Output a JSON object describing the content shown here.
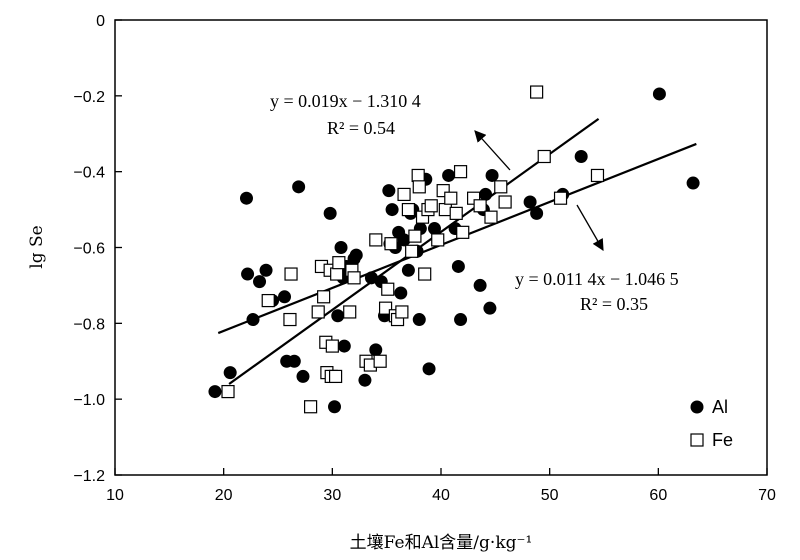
{
  "chart_data": {
    "type": "scatter",
    "xlabel": "土壤Fe和Al含量/g·kg⁻¹",
    "ylabel": "lg Se",
    "xlim": [
      10,
      70
    ],
    "ylim": [
      -1.2,
      0
    ],
    "xticks": [
      "10",
      "20",
      "30",
      "40",
      "50",
      "60",
      "70"
    ],
    "yticks": [
      "0",
      "-0.2",
      "-0.4",
      "-0.6",
      "-0.8",
      "-1.0",
      "-1.2"
    ],
    "legend_position": "bottom-right",
    "series": [
      {
        "name": "Al",
        "marker": "filled-circle",
        "color": "#000000",
        "points": [
          [
            19.2,
            -0.98
          ],
          [
            20.6,
            -0.93
          ],
          [
            22.1,
            -0.47
          ],
          [
            22.2,
            -0.67
          ],
          [
            22.7,
            -0.79
          ],
          [
            23.3,
            -0.69
          ],
          [
            23.9,
            -0.66
          ],
          [
            24.5,
            -0.74
          ],
          [
            25.6,
            -0.73
          ],
          [
            25.8,
            -0.9
          ],
          [
            26.5,
            -0.9
          ],
          [
            26.9,
            -0.44
          ],
          [
            27.3,
            -0.94
          ],
          [
            29.8,
            -0.51
          ],
          [
            30.2,
            -1.02
          ],
          [
            30.5,
            -0.78
          ],
          [
            30.8,
            -0.6
          ],
          [
            31.0,
            -0.68
          ],
          [
            31.1,
            -0.86
          ],
          [
            31.3,
            -0.65
          ],
          [
            31.7,
            -0.67
          ],
          [
            32.0,
            -0.63
          ],
          [
            32.2,
            -0.62
          ],
          [
            33.0,
            -0.95
          ],
          [
            33.6,
            -0.68
          ],
          [
            34.0,
            -0.87
          ],
          [
            34.5,
            -0.69
          ],
          [
            34.8,
            -0.78
          ],
          [
            35.2,
            -0.45
          ],
          [
            35.3,
            -0.59
          ],
          [
            35.5,
            -0.5
          ],
          [
            35.8,
            -0.6
          ],
          [
            36.1,
            -0.56
          ],
          [
            36.3,
            -0.72
          ],
          [
            36.6,
            -0.58
          ],
          [
            37.0,
            -0.66
          ],
          [
            37.2,
            -0.51
          ],
          [
            37.4,
            -0.5
          ],
          [
            37.8,
            -0.61
          ],
          [
            38.0,
            -0.79
          ],
          [
            38.1,
            -0.55
          ],
          [
            38.6,
            -0.42
          ],
          [
            38.9,
            -0.92
          ],
          [
            39.4,
            -0.55
          ],
          [
            40.7,
            -0.41
          ],
          [
            41.3,
            -0.55
          ],
          [
            41.6,
            -0.65
          ],
          [
            41.8,
            -0.79
          ],
          [
            43.6,
            -0.7
          ],
          [
            43.9,
            -0.5
          ],
          [
            44.1,
            -0.46
          ],
          [
            44.5,
            -0.76
          ],
          [
            44.7,
            -0.41
          ],
          [
            48.2,
            -0.48
          ],
          [
            48.8,
            -0.51
          ],
          [
            51.2,
            -0.46
          ],
          [
            52.9,
            -0.36
          ],
          [
            60.1,
            -0.195
          ],
          [
            63.2,
            -0.43
          ]
        ]
      },
      {
        "name": "Fe",
        "marker": "open-square",
        "color": "#000000",
        "points": [
          [
            20.4,
            -0.98
          ],
          [
            24.1,
            -0.74
          ],
          [
            26.2,
            -0.67
          ],
          [
            26.1,
            -0.79
          ],
          [
            28.0,
            -1.02
          ],
          [
            28.7,
            -0.77
          ],
          [
            29.0,
            -0.65
          ],
          [
            29.2,
            -0.73
          ],
          [
            29.4,
            -0.85
          ],
          [
            29.5,
            -0.93
          ],
          [
            29.8,
            -0.66
          ],
          [
            29.9,
            -0.94
          ],
          [
            30.0,
            -0.86
          ],
          [
            30.3,
            -0.94
          ],
          [
            30.4,
            -0.67
          ],
          [
            30.6,
            -0.64
          ],
          [
            31.6,
            -0.77
          ],
          [
            31.8,
            -0.66
          ],
          [
            32.0,
            -0.68
          ],
          [
            33.1,
            -0.9
          ],
          [
            33.5,
            -0.91
          ],
          [
            34.0,
            -0.58
          ],
          [
            34.4,
            -0.9
          ],
          [
            34.9,
            -0.76
          ],
          [
            35.1,
            -0.71
          ],
          [
            35.4,
            -0.59
          ],
          [
            35.8,
            -0.78
          ],
          [
            36.0,
            -0.79
          ],
          [
            36.4,
            -0.77
          ],
          [
            36.6,
            -0.46
          ],
          [
            37.0,
            -0.5
          ],
          [
            37.3,
            -0.61
          ],
          [
            37.6,
            -0.57
          ],
          [
            37.9,
            -0.41
          ],
          [
            38.0,
            -0.44
          ],
          [
            38.3,
            -0.52
          ],
          [
            38.5,
            -0.67
          ],
          [
            38.8,
            -0.5
          ],
          [
            39.1,
            -0.49
          ],
          [
            39.7,
            -0.58
          ],
          [
            40.2,
            -0.45
          ],
          [
            40.4,
            -0.5
          ],
          [
            40.9,
            -0.47
          ],
          [
            41.4,
            -0.51
          ],
          [
            41.8,
            -0.4
          ],
          [
            42.0,
            -0.56
          ],
          [
            43.0,
            -0.47
          ],
          [
            43.6,
            -0.49
          ],
          [
            44.6,
            -0.52
          ],
          [
            45.5,
            -0.44
          ],
          [
            45.9,
            -0.48
          ],
          [
            48.8,
            -0.19
          ],
          [
            49.5,
            -0.36
          ],
          [
            51.0,
            -0.47
          ],
          [
            54.4,
            -0.41
          ]
        ]
      }
    ],
    "trendlines": [
      {
        "series": "Fe",
        "x_range": [
          20.5,
          54.5
        ]
      },
      {
        "series": "Al",
        "x_range": [
          19.5,
          63.5
        ]
      }
    ],
    "annotations": [
      {
        "equation": "y = 0.019x − 1.310 4",
        "r2": "R² = 0.54"
      },
      {
        "equation": "y = 0.011 4x − 1.046 5",
        "r2": "R² = 0.35"
      }
    ]
  }
}
